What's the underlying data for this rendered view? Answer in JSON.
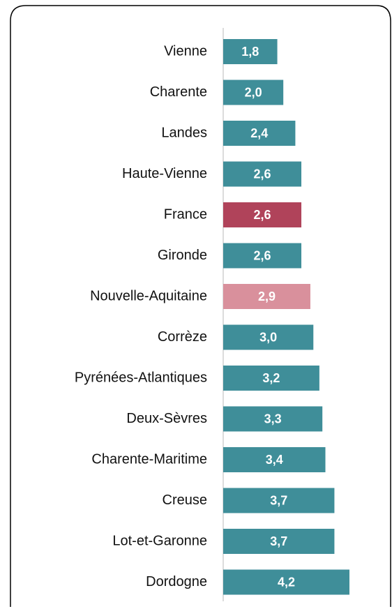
{
  "chart_data": {
    "type": "bar",
    "orientation": "horizontal",
    "categories": [
      "Vienne",
      "Charente",
      "Landes",
      "Haute-Vienne",
      "France",
      "Gironde",
      "Nouvelle-Aquitaine",
      "Corrèze",
      "Pyrénées-Atlantiques",
      "Deux-Sèvres",
      "Charente-Maritime",
      "Creuse",
      "Lot-et-Garonne",
      "Dordogne"
    ],
    "values": [
      1.8,
      2.0,
      2.4,
      2.6,
      2.6,
      2.6,
      2.9,
      3.0,
      3.2,
      3.3,
      3.4,
      3.7,
      3.7,
      4.2
    ],
    "value_labels": [
      "1,8",
      "2,0",
      "2,4",
      "2,6",
      "2,6",
      "2,6",
      "2,9",
      "3,0",
      "3,2",
      "3,3",
      "3,4",
      "3,7",
      "3,7",
      "4,2"
    ],
    "colors": [
      "#3f8e99",
      "#3f8e99",
      "#3f8e99",
      "#3f8e99",
      "#b0435a",
      "#3f8e99",
      "#d9909c",
      "#3f8e99",
      "#3f8e99",
      "#3f8e99",
      "#3f8e99",
      "#3f8e99",
      "#3f8e99",
      "#3f8e99"
    ],
    "xlim": [
      0,
      5.5
    ]
  }
}
